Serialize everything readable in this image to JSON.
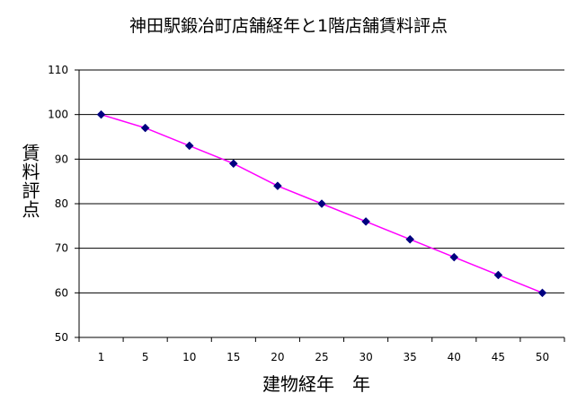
{
  "chart_data": {
    "type": "line",
    "title": "神田駅鍛冶町店舗経年と1階店舗賃料評点",
    "xlabel": "建物経年　年",
    "ylabel": "賃料評点",
    "categories": [
      "1",
      "5",
      "10",
      "15",
      "20",
      "25",
      "30",
      "35",
      "40",
      "45",
      "50"
    ],
    "series": [
      {
        "values": [
          100,
          97,
          93,
          89,
          84,
          80,
          76,
          72,
          68,
          64,
          60
        ]
      }
    ],
    "ylim": [
      50,
      110
    ],
    "yticks": [
      "50",
      "60",
      "70",
      "80",
      "90",
      "100",
      "110"
    ],
    "grid": true,
    "colors": {
      "line": "#ff00ff",
      "marker": "#000080",
      "plot_bg": "#ffffff",
      "grid": "#000000"
    }
  }
}
